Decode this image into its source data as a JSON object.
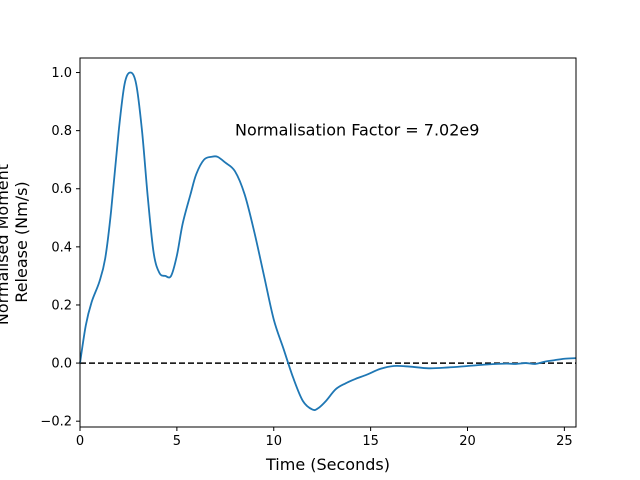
{
  "chart_data": {
    "type": "line",
    "xlabel": "Time (Seconds)",
    "ylabel_lines": [
      "Normalised Moment",
      "Release (Nm/s)"
    ],
    "annotation": "Normalisation Factor = 7.02e9",
    "annotation_position": {
      "x": 8.0,
      "y": 0.8
    },
    "xlim": [
      0,
      25.6
    ],
    "ylim": [
      -0.22,
      1.05
    ],
    "xticks": [
      0,
      5,
      10,
      15,
      20,
      25
    ],
    "xtick_labels": [
      "0",
      "5",
      "10",
      "15",
      "20",
      "25"
    ],
    "yticks": [
      -0.2,
      0.0,
      0.2,
      0.4,
      0.6,
      0.8,
      1.0
    ],
    "ytick_labels": [
      "−0.2",
      "0.0",
      "0.2",
      "0.4",
      "0.6",
      "0.8",
      "1.0"
    ],
    "grid": false,
    "reference_line": {
      "y": 0.0,
      "style": "dashed",
      "color": "#000000"
    },
    "series": [
      {
        "color": "#1f77b4",
        "x": [
          0,
          0.3,
          0.6,
          1.0,
          1.3,
          1.6,
          2.0,
          2.3,
          2.6,
          2.9,
          3.2,
          3.5,
          3.8,
          4.1,
          4.4,
          4.7,
          5.0,
          5.3,
          5.7,
          6.0,
          6.4,
          6.8,
          7.1,
          7.5,
          8.0,
          8.5,
          9.0,
          9.5,
          10.0,
          10.5,
          11.0,
          11.5,
          12.0,
          12.3,
          12.7,
          13.2,
          13.7,
          14.2,
          14.8,
          15.5,
          16.2,
          17.0,
          18.0,
          19.0,
          20.0,
          21.0,
          22.0,
          22.5,
          23.0,
          23.5,
          24.0,
          24.5,
          25.0,
          25.6
        ],
        "y": [
          0.0,
          0.13,
          0.21,
          0.28,
          0.36,
          0.52,
          0.8,
          0.96,
          1.0,
          0.96,
          0.8,
          0.57,
          0.38,
          0.31,
          0.3,
          0.3,
          0.37,
          0.48,
          0.58,
          0.65,
          0.7,
          0.71,
          0.71,
          0.69,
          0.66,
          0.58,
          0.45,
          0.3,
          0.15,
          0.05,
          -0.05,
          -0.13,
          -0.16,
          -0.155,
          -0.13,
          -0.09,
          -0.07,
          -0.055,
          -0.04,
          -0.02,
          -0.01,
          -0.012,
          -0.018,
          -0.015,
          -0.01,
          -0.005,
          -0.002,
          -0.003,
          0.0,
          -0.003,
          0.005,
          0.01,
          0.015,
          0.017
        ]
      }
    ]
  }
}
